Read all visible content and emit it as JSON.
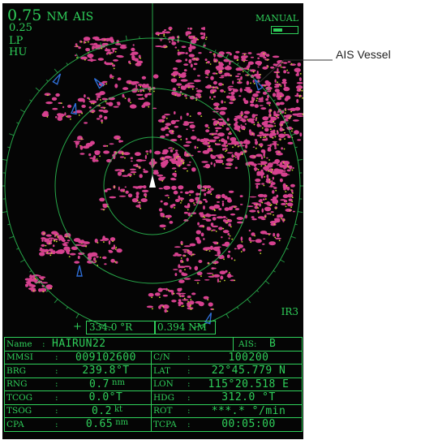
{
  "display": {
    "range_value": "0.75",
    "range_unit": "NM",
    "mode_ais": "AIS",
    "ring_interval": "0.25",
    "pulse": "LP",
    "orientation": "HU",
    "gain_mode": "MANUAL",
    "gain_level": 0.4,
    "interference": "IR3"
  },
  "cursor": {
    "plus": "+",
    "bearing": "334.0 °R",
    "distance": "0.394 NM"
  },
  "callout": {
    "label": "AIS Vessel"
  },
  "info": {
    "name_label": "Name",
    "name_value": "HAIRUN22",
    "ais_label": "AIS:",
    "ais_value": "B",
    "rows": [
      {
        "l_label": "MMSI",
        "l_value": "009102600",
        "l_unit": "",
        "r_label": "C/N",
        "r_value": "100200",
        "r_unit": ""
      },
      {
        "l_label": "BRG",
        "l_value": "239.8°T",
        "l_unit": "",
        "r_label": "LAT",
        "r_value": "22°45.779 N",
        "r_unit": ""
      },
      {
        "l_label": "RNG",
        "l_value": "0.7",
        "l_unit": "nm",
        "r_label": "LON",
        "r_value": "115°20.518 E",
        "r_unit": ""
      },
      {
        "l_label": "TCOG",
        "l_value": "0.0°T",
        "l_unit": "",
        "r_label": "HDG",
        "r_value": "312.0 °T",
        "r_unit": ""
      },
      {
        "l_label": "TSOG",
        "l_value": "0.2",
        "l_unit": "kt",
        "r_label": "ROT",
        "r_value": "***.* °/min",
        "r_unit": ""
      },
      {
        "l_label": "CPA",
        "l_value": "0.65",
        "l_unit": "nm",
        "r_label": "TCPA",
        "r_value": "00:05:00",
        "r_unit": ""
      }
    ]
  },
  "colors": {
    "hud_green": "#2fd05a",
    "echo_magenta": "#d6418f",
    "target_blue": "#2f6fd8",
    "background": "#050505"
  }
}
